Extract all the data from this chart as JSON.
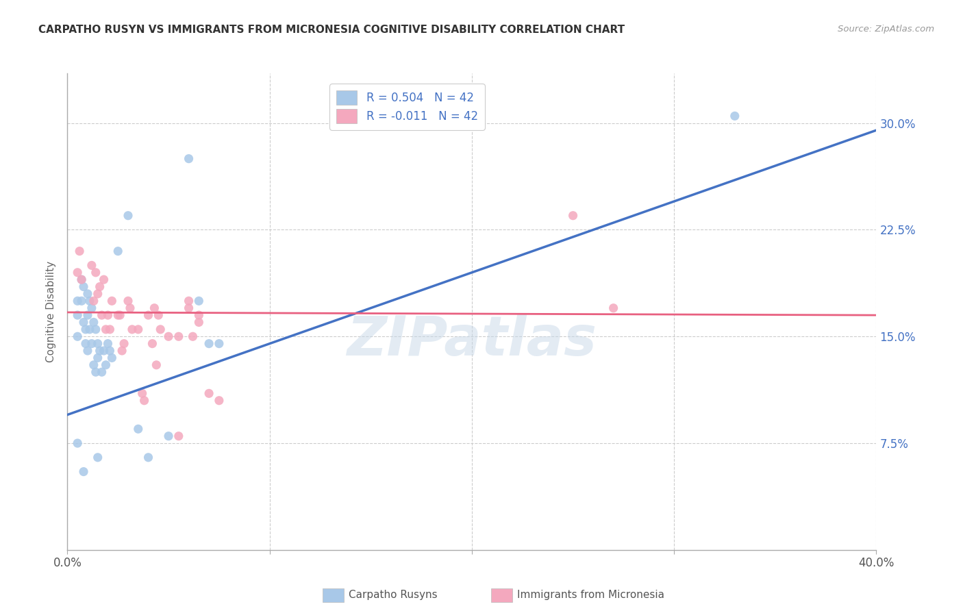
{
  "title": "CARPATHO RUSYN VS IMMIGRANTS FROM MICRONESIA COGNITIVE DISABILITY CORRELATION CHART",
  "source": "Source: ZipAtlas.com",
  "ylabel": "Cognitive Disability",
  "ytick_labels": [
    "7.5%",
    "15.0%",
    "22.5%",
    "30.0%"
  ],
  "ytick_values": [
    0.075,
    0.15,
    0.225,
    0.3
  ],
  "xlim": [
    0.0,
    0.4
  ],
  "ylim": [
    0.0,
    0.335
  ],
  "legend_r1": "R = 0.504   N = 42",
  "legend_r2": "R = -0.011   N = 42",
  "series1_color": "#a8c8e8",
  "series2_color": "#f4a8be",
  "trendline1_color": "#4472c4",
  "trendline2_color": "#e86080",
  "legend_text_color": "#4472c4",
  "background_color": "#ffffff",
  "grid_color": "#cccccc",
  "watermark": "ZIPatlas",
  "blue_points_x": [
    0.005,
    0.005,
    0.005,
    0.007,
    0.007,
    0.008,
    0.008,
    0.009,
    0.009,
    0.01,
    0.01,
    0.01,
    0.011,
    0.011,
    0.012,
    0.012,
    0.013,
    0.013,
    0.014,
    0.014,
    0.015,
    0.015,
    0.016,
    0.017,
    0.018,
    0.019,
    0.02,
    0.021,
    0.022,
    0.025,
    0.03,
    0.035,
    0.04,
    0.05,
    0.06,
    0.065,
    0.07,
    0.075,
    0.015,
    0.008,
    0.33,
    0.005
  ],
  "blue_points_y": [
    0.165,
    0.175,
    0.15,
    0.19,
    0.175,
    0.185,
    0.16,
    0.155,
    0.145,
    0.18,
    0.165,
    0.14,
    0.175,
    0.155,
    0.17,
    0.145,
    0.16,
    0.13,
    0.155,
    0.125,
    0.145,
    0.135,
    0.14,
    0.125,
    0.14,
    0.13,
    0.145,
    0.14,
    0.135,
    0.21,
    0.235,
    0.085,
    0.065,
    0.08,
    0.275,
    0.175,
    0.145,
    0.145,
    0.065,
    0.055,
    0.305,
    0.075
  ],
  "pink_points_x": [
    0.005,
    0.006,
    0.007,
    0.012,
    0.013,
    0.014,
    0.015,
    0.016,
    0.017,
    0.018,
    0.019,
    0.02,
    0.021,
    0.022,
    0.025,
    0.026,
    0.027,
    0.028,
    0.03,
    0.031,
    0.032,
    0.035,
    0.037,
    0.038,
    0.04,
    0.042,
    0.043,
    0.044,
    0.046,
    0.05,
    0.055,
    0.06,
    0.062,
    0.065,
    0.07,
    0.075,
    0.25,
    0.27,
    0.045,
    0.055,
    0.06,
    0.065
  ],
  "pink_points_y": [
    0.195,
    0.21,
    0.19,
    0.2,
    0.175,
    0.195,
    0.18,
    0.185,
    0.165,
    0.19,
    0.155,
    0.165,
    0.155,
    0.175,
    0.165,
    0.165,
    0.14,
    0.145,
    0.175,
    0.17,
    0.155,
    0.155,
    0.11,
    0.105,
    0.165,
    0.145,
    0.17,
    0.13,
    0.155,
    0.15,
    0.15,
    0.17,
    0.15,
    0.16,
    0.11,
    0.105,
    0.235,
    0.17,
    0.165,
    0.08,
    0.175,
    0.165
  ],
  "trendline1_x": [
    0.0,
    0.4
  ],
  "trendline1_y": [
    0.095,
    0.295
  ],
  "trendline2_x": [
    0.0,
    0.4
  ],
  "trendline2_y": [
    0.167,
    0.165
  ]
}
